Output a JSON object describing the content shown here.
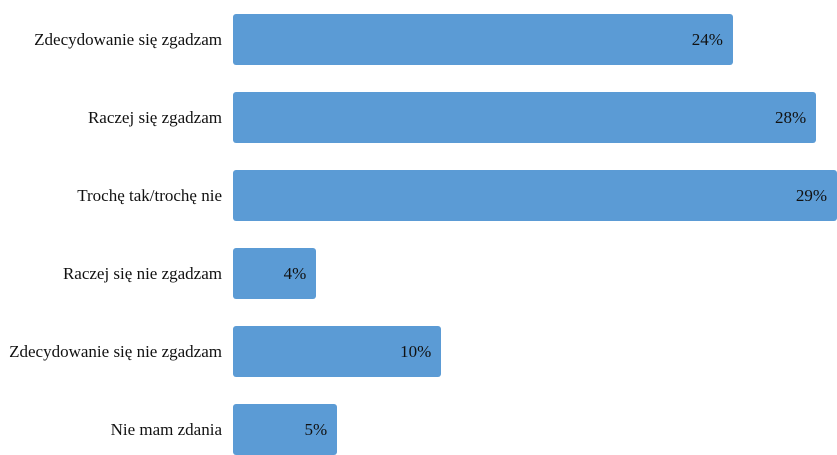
{
  "chart_data": {
    "type": "bar",
    "orientation": "horizontal",
    "categories": [
      "Zdecydowanie się zgadzam",
      "Raczej się zgadzam",
      "Trochę tak/trochę nie",
      "Raczej się nie zgadzam",
      "Zdecydowanie się nie zgadzam",
      "Nie mam zdania"
    ],
    "values": [
      24,
      28,
      29,
      4,
      10,
      5
    ],
    "value_labels": [
      "24%",
      "28%",
      "29%",
      "4%",
      "10%",
      "5%"
    ],
    "unit": "%",
    "xlim": [
      0,
      29
    ],
    "bar_color": "#5b9bd5",
    "title": "",
    "xlabel": "",
    "ylabel": "",
    "grid": false,
    "legend": "none"
  }
}
